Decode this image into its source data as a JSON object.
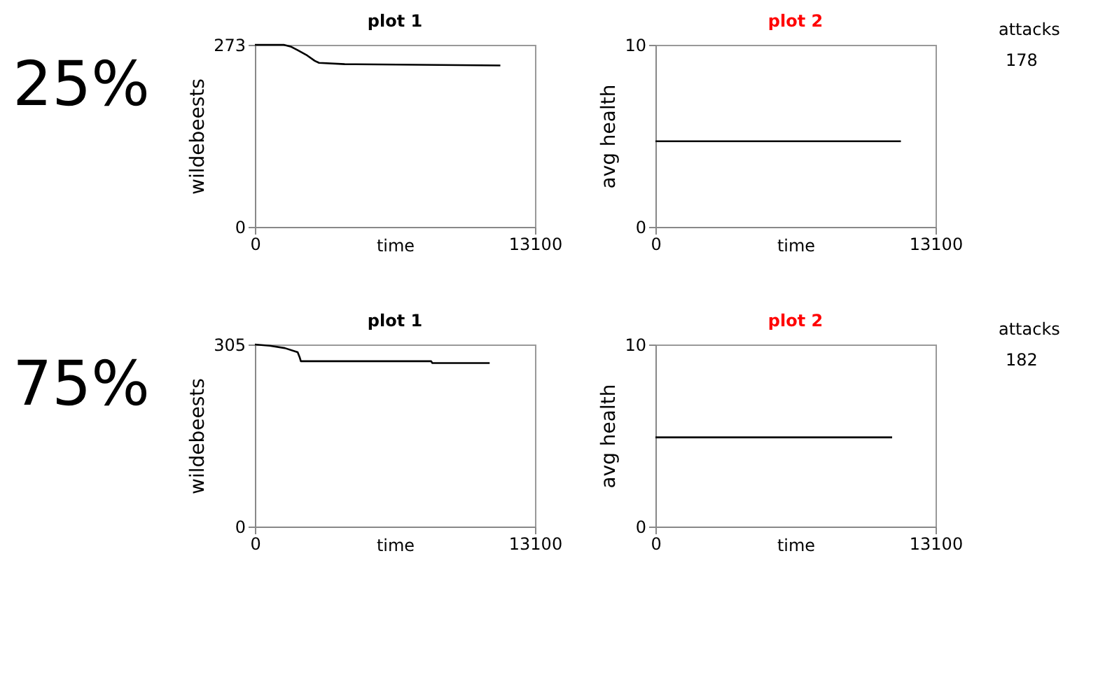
{
  "chart_data": [
    {
      "type": "other",
      "title": "25%"
    },
    {
      "type": "line",
      "title": "plot 1",
      "xlabel": "time",
      "ylabel": "wildebeests",
      "x": [
        0,
        1350,
        1700,
        2000,
        2400,
        2800,
        3000,
        4200,
        11480
      ],
      "values": [
        273,
        273,
        270,
        265,
        258,
        249,
        246,
        244,
        242
      ],
      "color": "#000000",
      "xlim": [
        0,
        13100
      ],
      "ylim": [
        0,
        273
      ],
      "xticks": [
        0,
        13100
      ],
      "yticks": [
        0,
        273
      ],
      "grid": false
    },
    {
      "type": "line",
      "title": "plot 2",
      "xlabel": "time",
      "ylabel": "avg health",
      "x": [
        0,
        11480
      ],
      "values": [
        4.7,
        4.7
      ],
      "color": "#000000",
      "xlim": [
        0,
        13100
      ],
      "ylim": [
        0,
        10
      ],
      "xticks": [
        0,
        13100
      ],
      "yticks": [
        0,
        10
      ],
      "grid": false
    },
    {
      "type": "other",
      "title": "attacks",
      "annotations": [
        "178"
      ]
    },
    {
      "type": "other",
      "title": "75%"
    },
    {
      "type": "line",
      "title": "plot 1",
      "xlabel": "time",
      "ylabel": "wildebeests",
      "x": [
        0,
        700,
        1400,
        2000,
        2100,
        2150,
        8240,
        8300,
        10980
      ],
      "values": [
        305,
        303,
        299,
        292,
        283,
        277,
        277,
        274,
        274
      ],
      "color": "#000000",
      "xlim": [
        0,
        13100
      ],
      "ylim": [
        0,
        305
      ],
      "xticks": [
        0,
        13100
      ],
      "yticks": [
        0,
        305
      ],
      "grid": false
    },
    {
      "type": "line",
      "title": "plot 2",
      "xlabel": "time",
      "ylabel": "avg health",
      "x": [
        0,
        11070
      ],
      "values": [
        4.9,
        4.9
      ],
      "color": "#000000",
      "xlim": [
        0,
        13100
      ],
      "ylim": [
        0,
        10
      ],
      "xticks": [
        0,
        13100
      ],
      "yticks": [
        0,
        10
      ],
      "grid": false
    },
    {
      "type": "other",
      "title": "attacks",
      "annotations": [
        "182"
      ]
    }
  ]
}
